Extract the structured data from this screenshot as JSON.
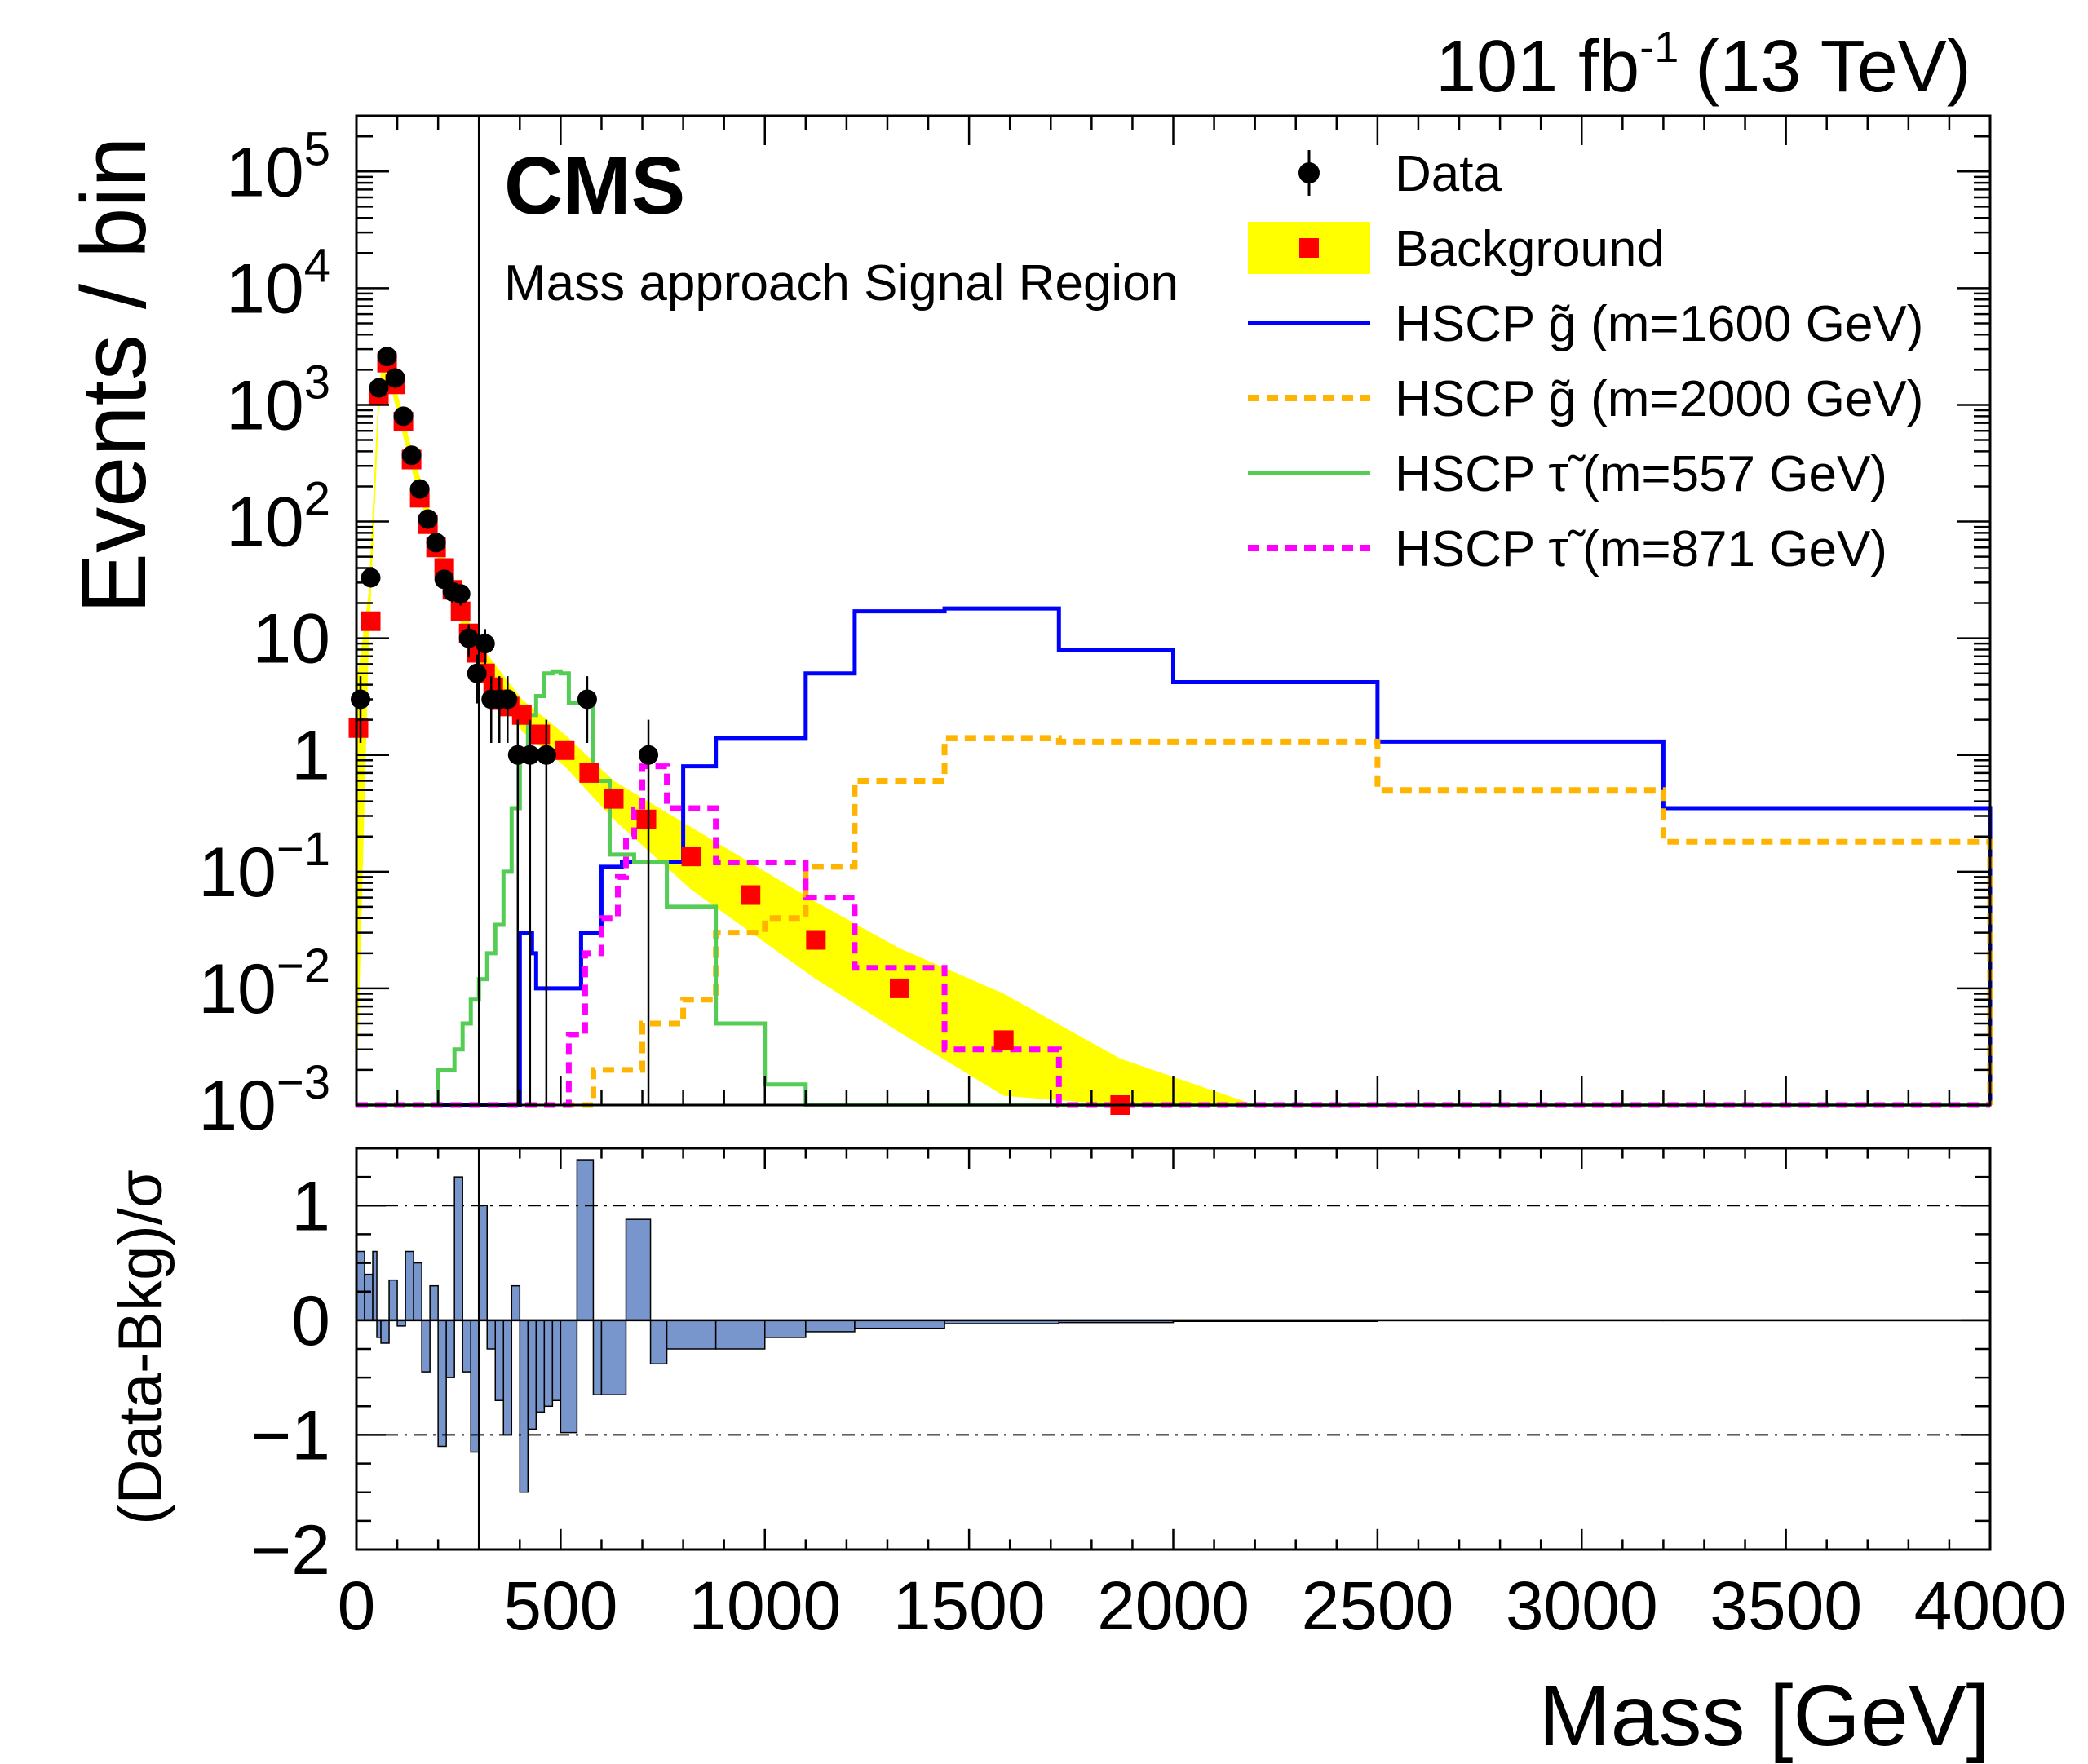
{
  "header": {
    "lumi_main": "101 fb",
    "lumi_exp": "-1",
    "lumi_energy": "(13 TeV)",
    "experiment": "CMS",
    "region": "Mass approach Signal Region"
  },
  "colors": {
    "background_band": "#ffff00",
    "background_marker": "#ff0000",
    "gluino_1600": "#0000ff",
    "gluino_2000": "#ffb400",
    "stau_557": "#55cc55",
    "stau_871": "#ff00ff",
    "ratio_fill": "#7996cc",
    "data": "#000000"
  },
  "chart_data": [
    {
      "type": "line",
      "panel": "main",
      "ylabel": "Events / bin",
      "xlim": [
        0,
        4000
      ],
      "ylim": [
        0.001,
        300000
      ],
      "yscale": "log",
      "y_ticks": [
        {
          "m": "10",
          "e": "−3",
          "v": 0.001
        },
        {
          "m": "10",
          "e": "−2",
          "v": 0.01
        },
        {
          "m": "10",
          "e": "−1",
          "v": 0.1
        },
        {
          "m": "1",
          "e": "",
          "v": 1
        },
        {
          "m": "10",
          "e": "",
          "v": 10
        },
        {
          "m": "10",
          "e": "2",
          "v": 100
        },
        {
          "m": "10",
          "e": "3",
          "v": 1000
        },
        {
          "m": "10",
          "e": "4",
          "v": 10000
        },
        {
          "m": "10",
          "e": "5",
          "v": 100000
        }
      ],
      "vline_x": 300,
      "legend_placement": "top-right",
      "legend": [
        {
          "label": "Data",
          "kind": "data"
        },
        {
          "label": "Background",
          "kind": "band"
        },
        {
          "label": "HSCP g̃ (m=1600 GeV)",
          "kind": "line",
          "color": "#0000ff",
          "dashed": false
        },
        {
          "label": "HSCP g̃ (m=2000 GeV)",
          "kind": "line",
          "color": "#ffb400",
          "dashed": true
        },
        {
          "label": "HSCP τ̃ (m=557 GeV)",
          "kind": "line",
          "color": "#55cc55",
          "dashed": false
        },
        {
          "label": "HSCP τ̃ (m=871 GeV)",
          "kind": "line",
          "color": "#ff00ff",
          "dashed": true
        }
      ],
      "data_points": [
        {
          "x": 10,
          "y": 3
        },
        {
          "x": 35,
          "y": 33
        },
        {
          "x": 55,
          "y": 1400
        },
        {
          "x": 75,
          "y": 2600
        },
        {
          "x": 95,
          "y": 1700
        },
        {
          "x": 115,
          "y": 800
        },
        {
          "x": 135,
          "y": 370
        },
        {
          "x": 155,
          "y": 190
        },
        {
          "x": 175,
          "y": 105
        },
        {
          "x": 195,
          "y": 66
        },
        {
          "x": 215,
          "y": 32
        },
        {
          "x": 235,
          "y": 25
        },
        {
          "x": 255,
          "y": 24
        },
        {
          "x": 275,
          "y": 10
        },
        {
          "x": 295,
          "y": 5
        },
        {
          "x": 315,
          "y": 9
        },
        {
          "x": 330,
          "y": 3
        },
        {
          "x": 350,
          "y": 3
        },
        {
          "x": 370,
          "y": 3
        },
        {
          "x": 395,
          "y": 1
        },
        {
          "x": 425,
          "y": 1
        },
        {
          "x": 465,
          "y": 1
        },
        {
          "x": 565,
          "y": 3
        },
        {
          "x": 715,
          "y": 1
        }
      ],
      "background_points": [
        {
          "x": 5,
          "y": 1.7
        },
        {
          "x": 35,
          "y": 14
        },
        {
          "x": 55,
          "y": 1200
        },
        {
          "x": 75,
          "y": 2300
        },
        {
          "x": 95,
          "y": 1500
        },
        {
          "x": 115,
          "y": 720
        },
        {
          "x": 135,
          "y": 340
        },
        {
          "x": 155,
          "y": 160
        },
        {
          "x": 175,
          "y": 95
        },
        {
          "x": 195,
          "y": 60
        },
        {
          "x": 215,
          "y": 40
        },
        {
          "x": 235,
          "y": 26
        },
        {
          "x": 255,
          "y": 17
        },
        {
          "x": 275,
          "y": 11
        },
        {
          "x": 295,
          "y": 7.5
        },
        {
          "x": 315,
          "y": 5
        },
        {
          "x": 335,
          "y": 3.8
        },
        {
          "x": 355,
          "y": 3
        },
        {
          "x": 375,
          "y": 2.6
        },
        {
          "x": 405,
          "y": 2.2
        },
        {
          "x": 450,
          "y": 1.5
        },
        {
          "x": 510,
          "y": 1.1
        },
        {
          "x": 570,
          "y": 0.7
        },
        {
          "x": 630,
          "y": 0.42
        },
        {
          "x": 710,
          "y": 0.28
        },
        {
          "x": 820,
          "y": 0.135
        },
        {
          "x": 965,
          "y": 0.063
        },
        {
          "x": 1125,
          "y": 0.026
        },
        {
          "x": 1330,
          "y": 0.01
        },
        {
          "x": 1585,
          "y": 0.0036
        },
        {
          "x": 1870,
          "y": 0.00095
        }
      ],
      "background_band": [
        {
          "x": 0,
          "lo": 0.001,
          "hi": 4
        },
        {
          "x": 30,
          "lo": 8,
          "hi": 25
        },
        {
          "x": 55,
          "lo": 900,
          "hi": 1600
        },
        {
          "x": 75,
          "lo": 1900,
          "hi": 2800
        },
        {
          "x": 135,
          "lo": 280,
          "hi": 420
        },
        {
          "x": 215,
          "lo": 32,
          "hi": 48
        },
        {
          "x": 295,
          "lo": 5.8,
          "hi": 9.5
        },
        {
          "x": 405,
          "lo": 1.6,
          "hi": 3
        },
        {
          "x": 510,
          "lo": 0.8,
          "hi": 1.5
        },
        {
          "x": 630,
          "lo": 0.28,
          "hi": 0.6
        },
        {
          "x": 820,
          "lo": 0.07,
          "hi": 0.24
        },
        {
          "x": 1125,
          "lo": 0.012,
          "hi": 0.055
        },
        {
          "x": 1330,
          "lo": 0.0042,
          "hi": 0.022
        },
        {
          "x": 1585,
          "lo": 0.0012,
          "hi": 0.009
        },
        {
          "x": 1870,
          "lo": 0.001,
          "hi": 0.0025
        },
        {
          "x": 2200,
          "lo": 0.001,
          "hi": 0.001
        }
      ],
      "series": [
        {
          "name": "HSCP g̃ (m=1600 GeV)",
          "edges": [
            0,
            100,
            130,
            200,
            300,
            320,
            340,
            370,
            400,
            410,
            430,
            440,
            460,
            480,
            500,
            550,
            600,
            650,
            700,
            800,
            880,
            1000,
            1100,
            1220,
            1440,
            1720,
            2000,
            2500,
            3200,
            4000
          ],
          "values": [
            0.001,
            0.001,
            0.001,
            0.001,
            0.001,
            0.001,
            0.001,
            0.001,
            0.03,
            0.03,
            0.02,
            0.01,
            0.01,
            0.01,
            0.01,
            0.03,
            0.11,
            0.12,
            0.12,
            0.8,
            1.4,
            1.4,
            5,
            17,
            18,
            8,
            4.2,
            1.3,
            0.35
          ]
        },
        {
          "name": "HSCP g̃ (m=2000 GeV)",
          "edges": [
            0,
            200,
            400,
            500,
            580,
            700,
            800,
            880,
            1000,
            1100,
            1220,
            1440,
            1720,
            2000,
            2500,
            3200,
            4000
          ],
          "values": [
            0.001,
            0.001,
            0.001,
            0.001,
            0.002,
            0.005,
            0.008,
            0.03,
            0.04,
            0.11,
            0.6,
            1.4,
            1.3,
            1.3,
            0.5,
            0.18
          ]
        },
        {
          "name": "HSCP τ̃ (m=557 GeV)",
          "edges": [
            0,
            200,
            240,
            260,
            280,
            300,
            320,
            340,
            360,
            380,
            400,
            420,
            440,
            460,
            480,
            500,
            520,
            580,
            620,
            680,
            760,
            880,
            1000,
            1100,
            1220,
            4000
          ],
          "values": [
            0.001,
            0.002,
            0.003,
            0.005,
            0.008,
            0.012,
            0.02,
            0.035,
            0.1,
            0.35,
            1,
            2.2,
            3.2,
            5,
            5.2,
            5,
            2.8,
            0.6,
            0.14,
            0.12,
            0.05,
            0.005,
            0.0015,
            0.001,
            0.001
          ]
        },
        {
          "name": "HSCP τ̃ (m=871 GeV)",
          "edges": [
            0,
            400,
            520,
            560,
            600,
            640,
            660,
            680,
            700,
            760,
            880,
            1000,
            1100,
            1220,
            1440,
            1720,
            4000
          ],
          "values": [
            0.001,
            0.001,
            0.004,
            0.02,
            0.04,
            0.09,
            0.2,
            0.34,
            0.8,
            0.35,
            0.12,
            0.12,
            0.06,
            0.015,
            0.003,
            0.001
          ]
        }
      ]
    },
    {
      "type": "bar",
      "panel": "ratio",
      "ylabel": "(Data-Bkg)/σ",
      "xlabel": "Mass [GeV]",
      "xlim": [
        0,
        4000
      ],
      "ylim": [
        -2,
        1.5
      ],
      "x_ticks": [
        0,
        500,
        1000,
        1500,
        2000,
        2500,
        3000,
        3500,
        4000
      ],
      "y_ticks": [
        {
          "label": "1",
          "v": 1
        },
        {
          "label": "0",
          "v": 0
        },
        {
          "label": "−1",
          "v": -1
        },
        {
          "label": "−2",
          "v": -2
        }
      ],
      "ref_lines": [
        1,
        -1
      ],
      "edges": [
        0,
        20,
        40,
        50,
        60,
        80,
        100,
        120,
        140,
        160,
        180,
        200,
        220,
        240,
        260,
        280,
        300,
        320,
        340,
        360,
        380,
        400,
        420,
        440,
        460,
        480,
        500,
        540,
        580,
        600,
        660,
        720,
        760,
        880,
        1000,
        1100,
        1220,
        1440,
        1720,
        2000,
        2500,
        3200,
        4000
      ],
      "values": [
        0.6,
        0.4,
        0.6,
        -0.15,
        -0.2,
        0.35,
        -0.05,
        0.6,
        0.5,
        -0.45,
        0.3,
        -1.1,
        -0.5,
        1.25,
        -0.45,
        -1.15,
        1.0,
        -0.25,
        -0.7,
        -1.0,
        0.3,
        -1.5,
        -0.95,
        -0.8,
        -0.75,
        -0.7,
        -0.98,
        1.4,
        -0.65,
        -0.65,
        0.88,
        -0.38,
        -0.25,
        -0.25,
        -0.15,
        -0.1,
        -0.07,
        -0.03,
        -0.02,
        -0.01,
        0.0,
        0.0
      ]
    }
  ]
}
